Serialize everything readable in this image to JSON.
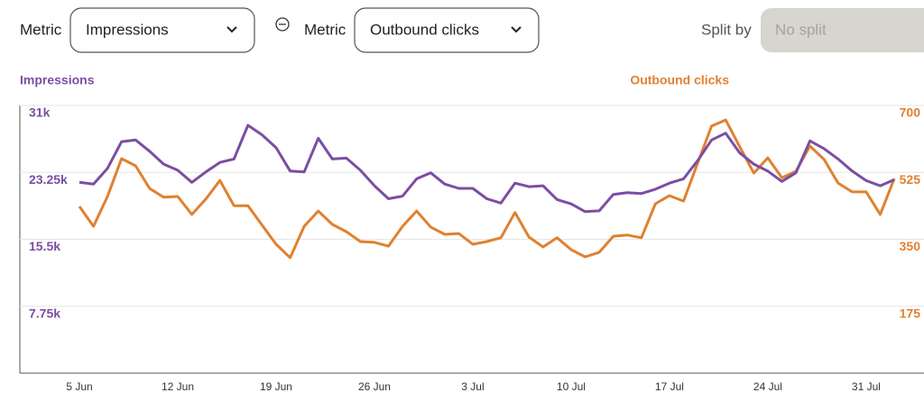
{
  "controls": {
    "metric1_label": "Metric",
    "metric1_value": "Impressions",
    "metric2_label": "Metric",
    "metric2_value": "Outbound clicks",
    "split_label": "Split by",
    "split_value": "No split"
  },
  "chart_data": {
    "type": "line",
    "categories": [
      "5 Jun",
      null,
      null,
      null,
      null,
      null,
      null,
      "12 Jun",
      null,
      null,
      null,
      null,
      null,
      null,
      "19 Jun",
      null,
      null,
      null,
      null,
      null,
      null,
      "26 Jun",
      null,
      null,
      null,
      null,
      null,
      null,
      "3 Jul",
      null,
      null,
      null,
      null,
      null,
      null,
      "10 Jul",
      null,
      null,
      null,
      null,
      null,
      null,
      "17 Jul",
      null,
      null,
      null,
      null,
      null,
      null,
      "24 Jul",
      null,
      null,
      null,
      null,
      null,
      null,
      "31 Jul",
      null,
      null
    ],
    "series": [
      {
        "name": "Impressions",
        "color": "#7b4ea3",
        "values": [
          22100,
          21900,
          23700,
          26800,
          27000,
          25700,
          24200,
          23500,
          22100,
          23300,
          24400,
          24800,
          28700,
          27600,
          26100,
          23400,
          23300,
          27200,
          24800,
          24900,
          23500,
          21700,
          20200,
          20500,
          22500,
          23200,
          21900,
          21400,
          21400,
          20200,
          19700,
          22000,
          21600,
          21700,
          20100,
          19600,
          18700,
          18800,
          20700,
          20900,
          20800,
          21300,
          22000,
          22500,
          24600,
          27000,
          27800,
          25500,
          24200,
          23400,
          22200,
          23200,
          26900,
          26000,
          24800,
          23400,
          22300,
          21700,
          22400
        ]
      },
      {
        "name": "Outbound clicks",
        "color": "#e0812f",
        "axis": "y2",
        "values": [
          436,
          384,
          462,
          561,
          542,
          483,
          460,
          462,
          415,
          455,
          504,
          438,
          438,
          387,
          337,
          302,
          384,
          424,
          389,
          370,
          344,
          342,
          332,
          384,
          424,
          382,
          363,
          365,
          337,
          344,
          354,
          420,
          356,
          330,
          354,
          323,
          304,
          316,
          358,
          361,
          354,
          443,
          464,
          450,
          549,
          646,
          662,
          592,
          523,
          563,
          511,
          528,
          594,
          559,
          497,
          474,
          474,
          415,
          509
        ]
      }
    ],
    "ylim": [
      0,
      31000
    ],
    "yticks": [
      {
        "value": 7750,
        "label": "7.75k"
      },
      {
        "value": 15500,
        "label": "15.5k"
      },
      {
        "value": 23250,
        "label": "23.25k"
      },
      {
        "value": 31000,
        "label": "31k"
      }
    ],
    "y2lim": [
      0,
      700
    ],
    "y2ticks": [
      175,
      350,
      525,
      700
    ],
    "grid": true
  }
}
